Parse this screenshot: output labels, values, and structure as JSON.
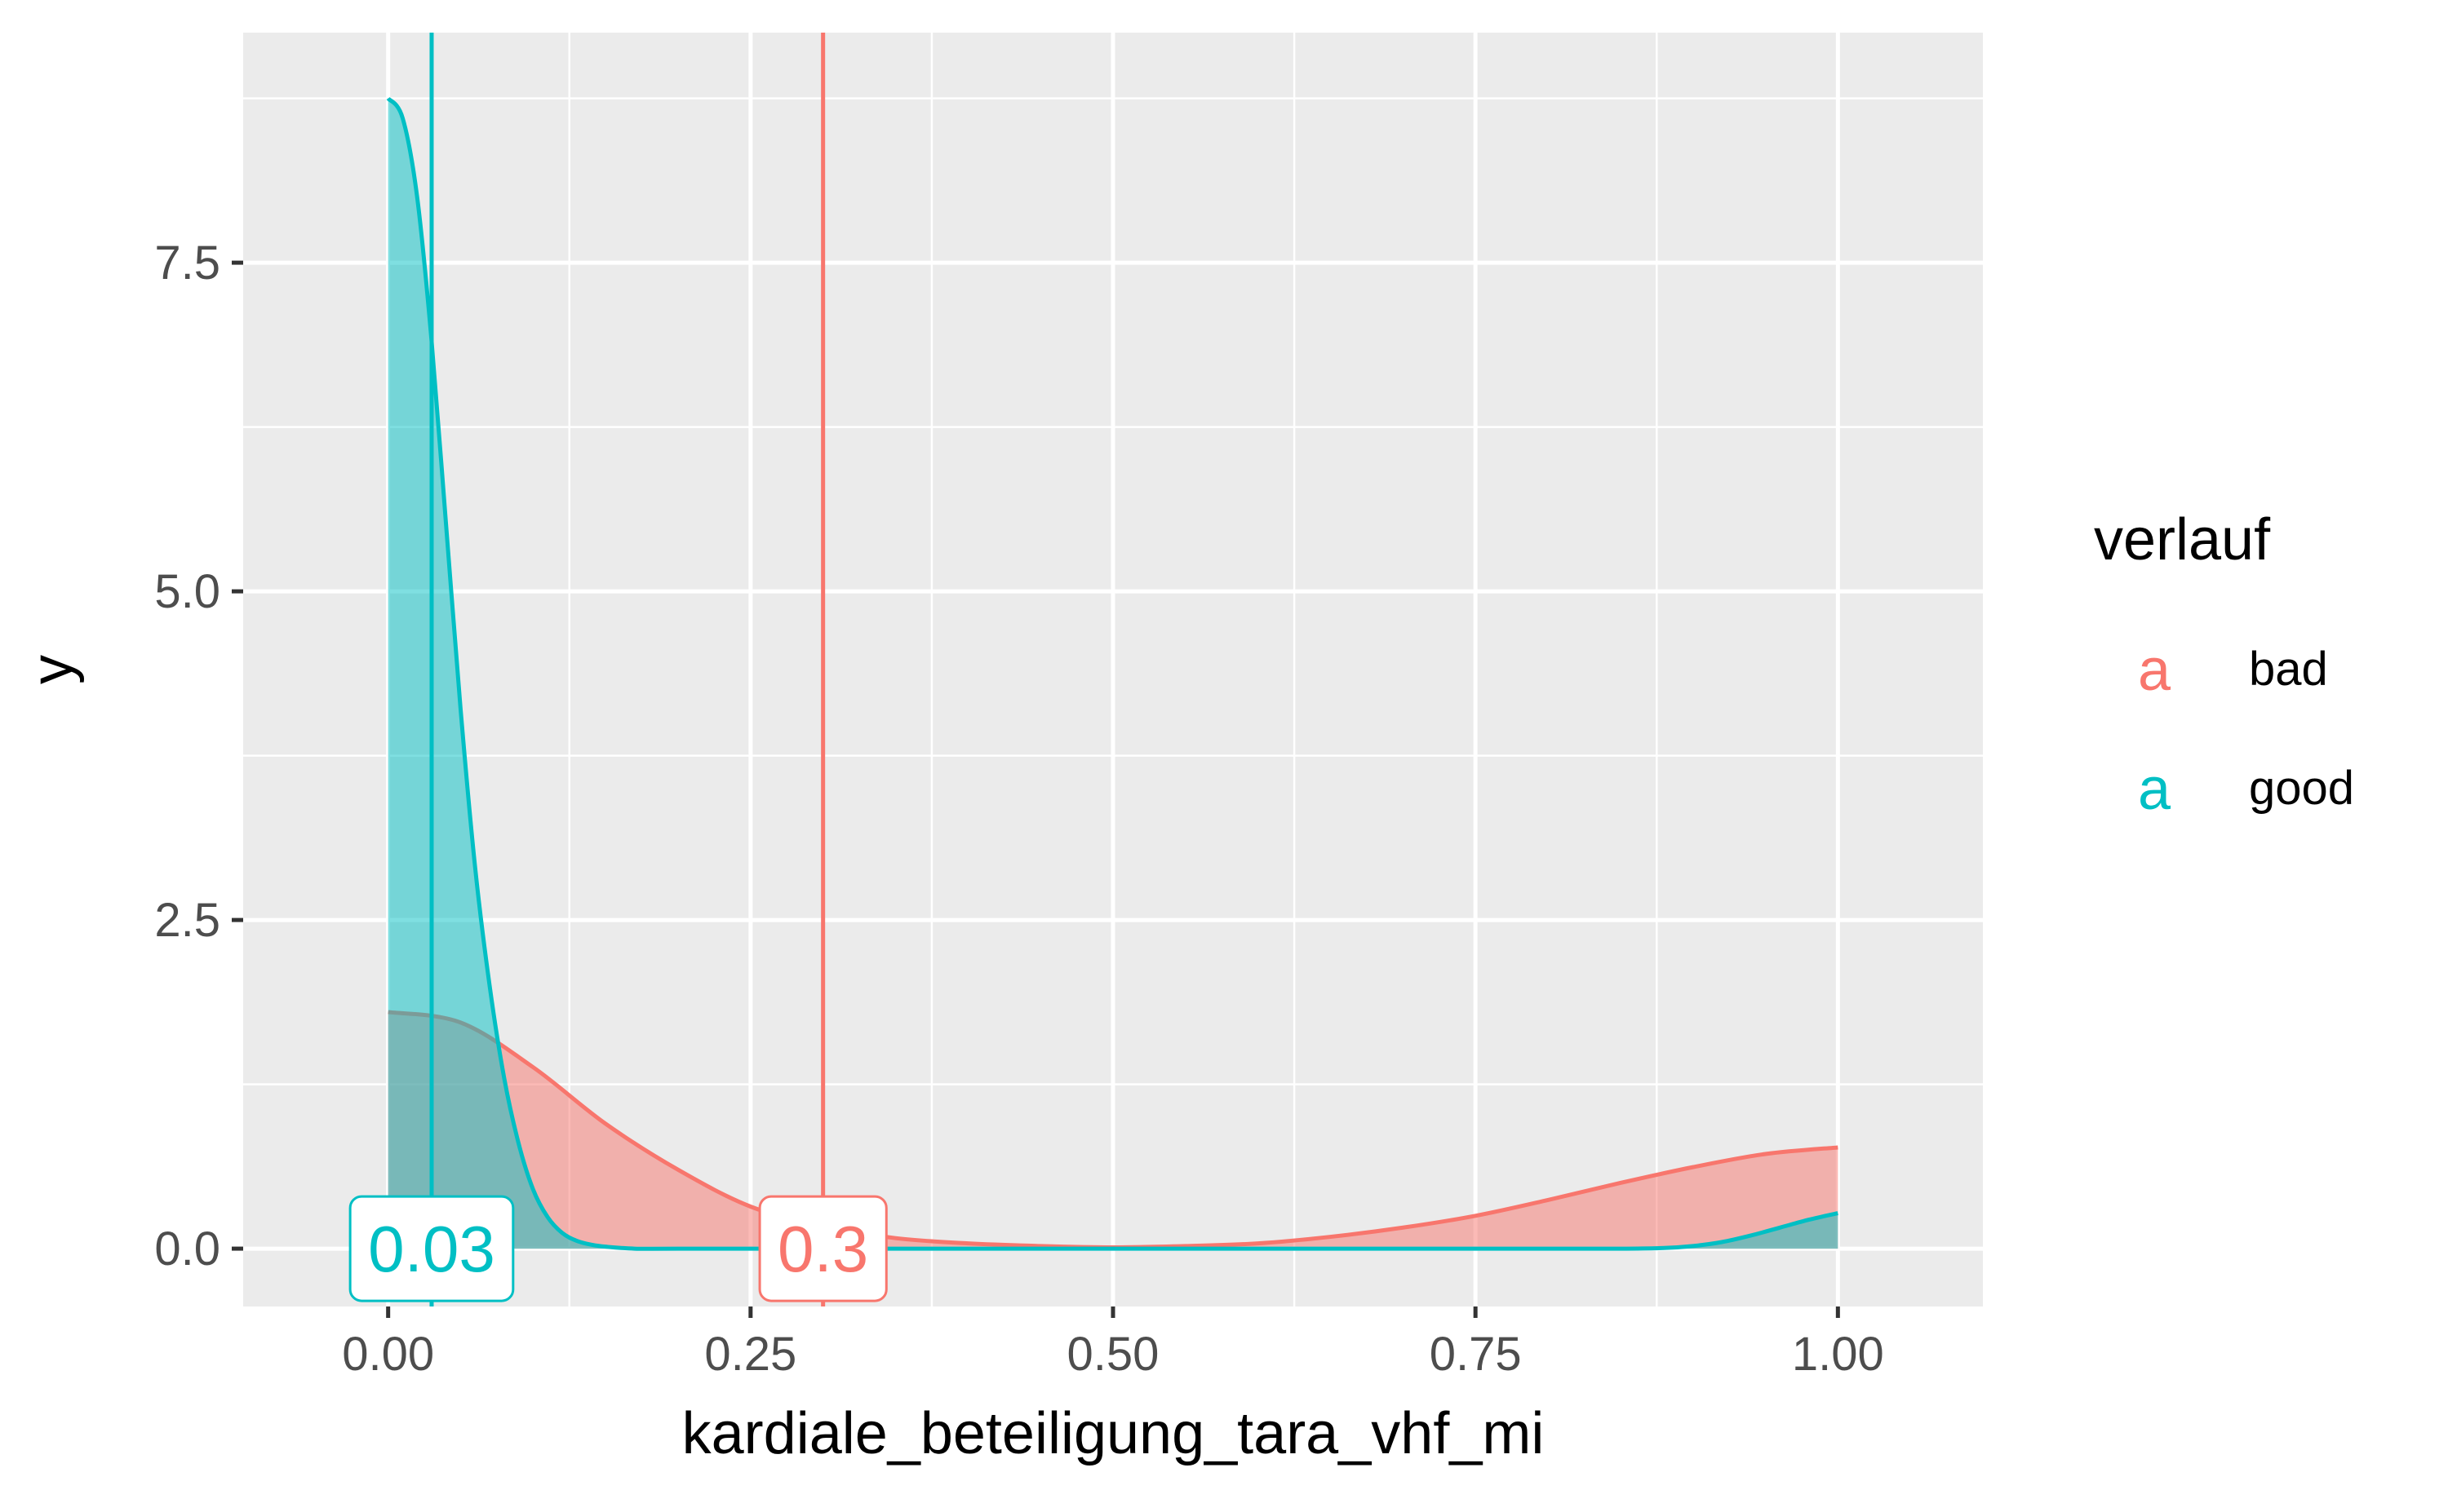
{
  "chart_data": {
    "type": "area",
    "title": "",
    "xlabel": "kardiale_beteiligung_tara_vhf_mi",
    "ylabel": "y",
    "xlim": [
      -0.1,
      1.1
    ],
    "ylim": [
      -0.44,
      9.25
    ],
    "grid": true,
    "x_ticks": [
      0,
      0.25,
      0.5,
      0.75,
      1
    ],
    "x_tick_labels": [
      "0.00",
      "0.25",
      "0.50",
      "0.75",
      "1.00"
    ],
    "y_ticks": [
      0,
      2.5,
      5,
      7.5
    ],
    "y_tick_labels": [
      "0.0",
      "2.5",
      "5.0",
      "7.5"
    ],
    "legend": {
      "title": "verlauf",
      "position": "right",
      "key_glyph": "a",
      "entries": [
        "bad",
        "good"
      ]
    },
    "series": [
      {
        "name": "bad",
        "color": "#F8766D",
        "fill_alpha": 0.5,
        "mean": 0.3,
        "mean_label": "0.3",
        "x": [
          0,
          0.05,
          0.1,
          0.15,
          0.2,
          0.25,
          0.3,
          0.35,
          0.4,
          0.45,
          0.5,
          0.55,
          0.6,
          0.65,
          0.7,
          0.75,
          0.8,
          0.85,
          0.9,
          0.95,
          1.0
        ],
        "y": [
          1.8,
          1.72,
          1.38,
          0.95,
          0.6,
          0.32,
          0.17,
          0.08,
          0.04,
          0.02,
          0.01,
          0.02,
          0.04,
          0.09,
          0.16,
          0.25,
          0.37,
          0.5,
          0.62,
          0.72,
          0.77
        ]
      },
      {
        "name": "good",
        "color": "#00BFC4",
        "fill_alpha": 0.5,
        "mean": 0.03,
        "mean_label": "0.03",
        "x": [
          0,
          0.01,
          0.02,
          0.03,
          0.04,
          0.05,
          0.06,
          0.07,
          0.08,
          0.09,
          0.1,
          0.11,
          0.12,
          0.13,
          0.14,
          0.15,
          0.17,
          0.2,
          0.3,
          0.5,
          0.7,
          0.8,
          0.85,
          0.88,
          0.9,
          0.92,
          0.94,
          0.96,
          0.98,
          1.0
        ],
        "y": [
          8.75,
          8.6,
          8.0,
          6.9,
          5.5,
          4.1,
          2.9,
          2.0,
          1.3,
          0.8,
          0.45,
          0.24,
          0.12,
          0.06,
          0.03,
          0.015,
          0.0,
          0.0,
          0.0,
          0.0,
          0.0,
          0.0,
          0.0,
          0.005,
          0.02,
          0.05,
          0.1,
          0.16,
          0.22,
          0.27
        ]
      }
    ]
  }
}
